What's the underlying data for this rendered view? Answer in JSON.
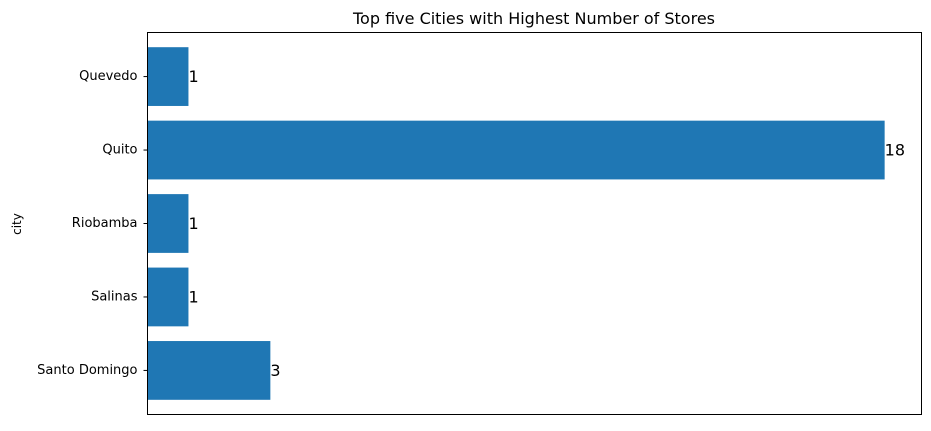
{
  "chart_data": {
    "type": "bar",
    "orientation": "horizontal",
    "title": "Top five Cities with Highest Number of Stores",
    "xlabel": "",
    "ylabel": "city",
    "categories": [
      "Quevedo",
      "Quito",
      "Riobamba",
      "Salinas",
      "Santo Domingo"
    ],
    "values": [
      1,
      18,
      1,
      1,
      3
    ],
    "data_labels": [
      "1",
      "18",
      "1",
      "1",
      "3"
    ],
    "xlim": [
      0,
      18.9
    ],
    "x_ticks_visible": false,
    "grid": false,
    "legend": "none",
    "bar_color": "#1f77b4"
  }
}
